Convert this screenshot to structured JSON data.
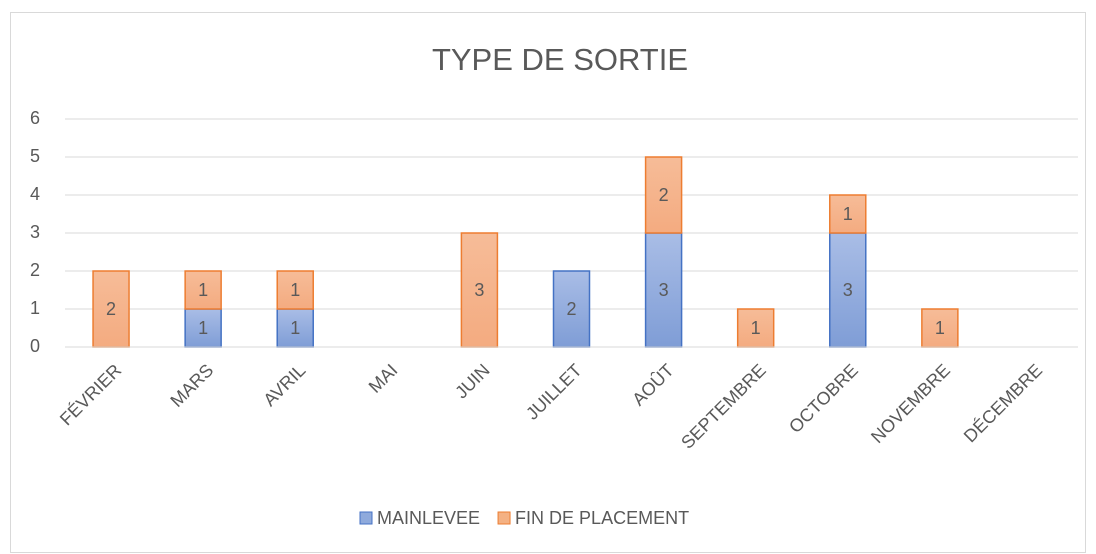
{
  "chart_data": {
    "type": "stacked_bar",
    "title": "TYPE DE SORTIE",
    "categories": [
      "FÉVRIER",
      "MARS",
      "AVRIL",
      "MAI",
      "JUIN",
      "JUILLET",
      "AOÛT",
      "SEPTEMBRE",
      "OCTOBRE",
      "NOVEMBRE",
      "DÉCEMBRE"
    ],
    "series": [
      {
        "name": "MAINLEVEE",
        "color": "#8faadc",
        "values": [
          null,
          1,
          1,
          null,
          null,
          2,
          3,
          null,
          3,
          null,
          null
        ]
      },
      {
        "name": "FIN DE PLACEMENT",
        "color": "#f4b183",
        "values": [
          2,
          1,
          1,
          null,
          3,
          null,
          2,
          1,
          1,
          1,
          null
        ]
      }
    ],
    "ylim": [
      0,
      6
    ],
    "yticks": [
      0,
      1,
      2,
      3,
      4,
      5,
      6
    ],
    "grid": true,
    "legend": "bottom"
  }
}
